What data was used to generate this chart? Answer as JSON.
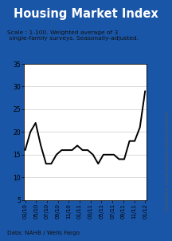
{
  "title": "Housing Market Index",
  "subtitle_line1": "Scale : 1-100. Weighted average of 3",
  "subtitle_line2": " single-family surveys. Seasonally-adjusted.",
  "footer": "Data: NAHB / Wells Fargo",
  "watermark": "©ChartForce  Do not reproduce without permission.",
  "title_bg": "#1a56a8",
  "title_color": "#ffffff",
  "outer_border": "#1a56a8",
  "line_color": "#000000",
  "bg_color": "#ffffff",
  "grid_color": "#cccccc",
  "ylim": [
    5,
    35
  ],
  "yticks": [
    5,
    10,
    15,
    20,
    25,
    30,
    35
  ],
  "x_labels": [
    "03/10",
    "05/10",
    "07/10",
    "09/10",
    "11/10",
    "01/11",
    "03/11",
    "05/11",
    "07/11",
    "09/11",
    "11/11",
    "01/12"
  ],
  "values": [
    16,
    20,
    22,
    17,
    13,
    13,
    15,
    16,
    16,
    16,
    17,
    16,
    16,
    15,
    13,
    15,
    15,
    15,
    14,
    14,
    18,
    18,
    21,
    29
  ],
  "n_points": 24
}
